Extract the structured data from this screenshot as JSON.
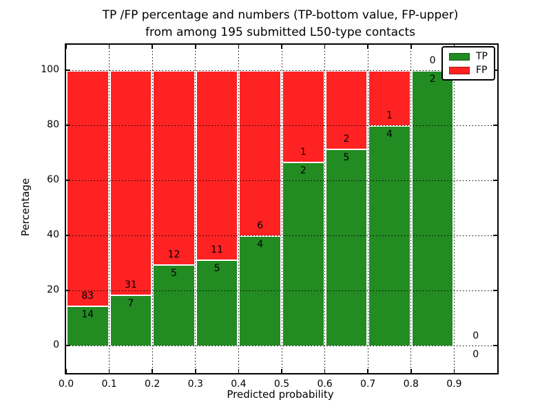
{
  "chart_data": {
    "type": "bar",
    "stacked": true,
    "title_lines": [
      "TP /FP percentage and numbers (TP-bottom value, FP-upper)",
      "from among 195 submitted L50-type contacts"
    ],
    "xlabel": "Predicted probability",
    "ylabel": "Percentage",
    "x_tick_labels": [
      "0.0",
      "0.1",
      "0.2",
      "0.3",
      "0.4",
      "0.5",
      "0.6",
      "0.7",
      "0.8",
      "0.9"
    ],
    "y_tick_values": [
      0,
      20,
      40,
      60,
      80,
      100
    ],
    "xlim": [
      0.0,
      1.0
    ],
    "ylim": [
      -10,
      109
    ],
    "grid": "dotted black, drawn over bars",
    "legend_position": "upper right",
    "total_contacts": 195,
    "bin_width": 0.1,
    "bins": [
      {
        "x_start": 0.0,
        "tp": 14,
        "fp": 83,
        "tp_pct": 14.4
      },
      {
        "x_start": 0.1,
        "tp": 7,
        "fp": 31,
        "tp_pct": 18.4
      },
      {
        "x_start": 0.2,
        "tp": 5,
        "fp": 12,
        "tp_pct": 29.4
      },
      {
        "x_start": 0.3,
        "tp": 5,
        "fp": 11,
        "tp_pct": 31.2
      },
      {
        "x_start": 0.4,
        "tp": 4,
        "fp": 6,
        "tp_pct": 40.0
      },
      {
        "x_start": 0.5,
        "tp": 2,
        "fp": 1,
        "tp_pct": 66.7
      },
      {
        "x_start": 0.6,
        "tp": 5,
        "fp": 2,
        "tp_pct": 71.4
      },
      {
        "x_start": 0.7,
        "tp": 4,
        "fp": 1,
        "tp_pct": 80.0
      },
      {
        "x_start": 0.8,
        "tp": 2,
        "fp": 0,
        "tp_pct": 100.0
      },
      {
        "x_start": 0.9,
        "tp": 0,
        "fp": 0,
        "tp_pct": 0.0
      }
    ],
    "series": [
      {
        "name": "TP",
        "color": "#228b22",
        "position": "bottom"
      },
      {
        "name": "FP",
        "color": "#ff2222",
        "position": "top"
      }
    ],
    "colors": {
      "tp_green": "#228b22",
      "fp_red": "#ff2222",
      "grid_and_text": "#000000",
      "bar_edge": "#ffffff",
      "background": "#ffffff"
    }
  }
}
